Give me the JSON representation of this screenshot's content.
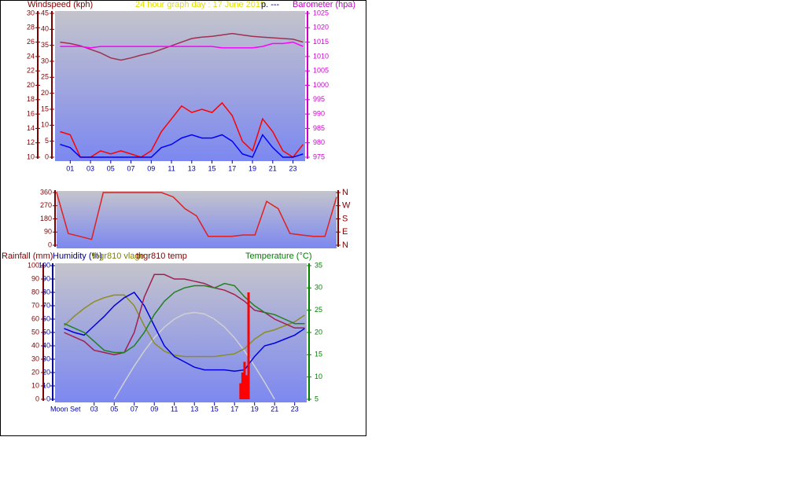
{
  "chart_data": [
    {
      "type": "line",
      "title": "24 hour graph day : 17 June 2019",
      "annotation": "p. ---",
      "ylabel": "Windspeed (kph)",
      "y2label": "Barometer (hpa)",
      "x": [
        0,
        1,
        2,
        3,
        4,
        5,
        6,
        7,
        8,
        9,
        10,
        11,
        12,
        13,
        14,
        15,
        16,
        17,
        18,
        19,
        20,
        21,
        22,
        23,
        24
      ],
      "xlim": [
        -0.5,
        24.2
      ],
      "xticks": [
        {
          "value": 1,
          "label": "01"
        },
        {
          "value": 3,
          "label": "03"
        },
        {
          "value": 5,
          "label": "05"
        },
        {
          "value": 7,
          "label": "07"
        },
        {
          "value": 9,
          "label": "09"
        },
        {
          "value": 11,
          "label": "11"
        },
        {
          "value": 13,
          "label": "13"
        },
        {
          "value": 15,
          "label": "15"
        },
        {
          "value": 17,
          "label": "17"
        },
        {
          "value": 19,
          "label": "19"
        },
        {
          "value": 21,
          "label": "21"
        },
        {
          "value": 23,
          "label": "23"
        }
      ],
      "ylim": [
        0,
        45
      ],
      "yticks": [
        0,
        5,
        10,
        15,
        20,
        25,
        30,
        35,
        40,
        45
      ],
      "y3lim": [
        10,
        30
      ],
      "y3ticks": [
        10,
        12,
        14,
        16,
        18,
        20,
        22,
        24,
        26,
        28,
        30
      ],
      "y2lim": [
        975,
        1025
      ],
      "y2ticks": [
        975,
        980,
        985,
        990,
        995,
        1000,
        1005,
        1010,
        1015,
        1020,
        1025
      ],
      "series": [
        {
          "color": "#ff0000",
          "values": [
            8,
            7,
            0,
            0,
            2,
            1,
            2,
            1,
            0,
            2,
            8,
            12,
            16,
            14,
            15,
            14,
            17,
            13,
            5,
            2,
            12,
            8,
            2,
            0,
            4
          ]
        },
        {
          "color": "#0000ff",
          "values": [
            4,
            3,
            0,
            0,
            0,
            0,
            0,
            0,
            0,
            0,
            3,
            4,
            6,
            7,
            6,
            6,
            7,
            5,
            1,
            0,
            7,
            3,
            0,
            0,
            1
          ]
        },
        {
          "color": "#a03050",
          "axis": "y3",
          "values": [
            26,
            25.8,
            25.5,
            25,
            24.5,
            23.8,
            23.5,
            23.8,
            24.2,
            24.5,
            25,
            25.5,
            26,
            26.5,
            26.7,
            26.8,
            27,
            27.2,
            27,
            26.8,
            26.7,
            26.6,
            26.5,
            26.4,
            26
          ]
        },
        {
          "color": "#ff00ff",
          "axis": "y2",
          "values": [
            1013.5,
            1013.5,
            1013.5,
            1013,
            1013.5,
            1013.5,
            1013.5,
            1013.5,
            1013.5,
            1013.5,
            1013.5,
            1013.5,
            1013.5,
            1013.5,
            1013.5,
            1013.5,
            1013,
            1013,
            1013,
            1013,
            1013.5,
            1014.5,
            1014.5,
            1015,
            1013.5
          ]
        }
      ]
    },
    {
      "type": "line",
      "x": [
        0,
        1,
        2,
        3,
        4,
        5,
        6,
        7,
        8,
        9,
        10,
        11,
        12,
        13,
        14,
        15,
        16,
        17,
        18,
        19,
        20,
        21,
        22,
        23,
        24
      ],
      "xlim": [
        0,
        24
      ],
      "ylim": [
        0,
        360
      ],
      "yticks": [
        0,
        90,
        180,
        270,
        360
      ],
      "y2ticks": [
        {
          "value": 0,
          "label": "N"
        },
        {
          "value": 90,
          "label": "E"
        },
        {
          "value": 180,
          "label": "S"
        },
        {
          "value": 270,
          "label": "W"
        },
        {
          "value": 360,
          "label": "N"
        }
      ],
      "series": [
        {
          "color": "#e02020",
          "values": [
            360,
            80,
            60,
            40,
            360,
            360,
            360,
            360,
            360,
            360,
            330,
            250,
            200,
            60,
            60,
            60,
            70,
            70,
            300,
            250,
            80,
            70,
            60,
            60,
            330
          ]
        }
      ]
    },
    {
      "type": "line",
      "ylabel": "Humidity (%)",
      "y3label": "Rainfall (mm)",
      "labels": [
        "thgr810 vlage",
        "thgr810 temp"
      ],
      "y2label": "Temperature (°C)",
      "annotation": "Moon Set",
      "x": [
        0,
        1,
        2,
        3,
        4,
        5,
        6,
        7,
        8,
        9,
        10,
        11,
        12,
        13,
        14,
        15,
        16,
        17,
        18,
        19,
        20,
        21,
        22,
        23,
        24
      ],
      "xlim": [
        -0.9,
        24.2
      ],
      "xticks": [
        {
          "value": 3,
          "label": "03"
        },
        {
          "value": 5,
          "label": "05"
        },
        {
          "value": 7,
          "label": "07"
        },
        {
          "value": 9,
          "label": "09"
        },
        {
          "value": 11,
          "label": "11"
        },
        {
          "value": 13,
          "label": "13"
        },
        {
          "value": 15,
          "label": "15"
        },
        {
          "value": 17,
          "label": "17"
        },
        {
          "value": 19,
          "label": "19"
        },
        {
          "value": 21,
          "label": "21"
        },
        {
          "value": 23,
          "label": "23"
        }
      ],
      "ylim": [
        0,
        100
      ],
      "yticks": [
        0,
        10,
        20,
        30,
        40,
        50,
        60,
        70,
        80,
        90,
        100
      ],
      "y3lim": [
        0,
        100
      ],
      "y3ticks": [
        0,
        10,
        20,
        30,
        40,
        50,
        60,
        70,
        80,
        90,
        100
      ],
      "y2lim": [
        5,
        35
      ],
      "y2ticks": [
        5,
        10,
        15,
        20,
        25,
        30,
        35
      ],
      "series": [
        {
          "color": "#d0d0d0",
          "values": [
            null,
            null,
            null,
            null,
            null,
            0,
            12.7,
            24.9,
            36.1,
            46,
            54,
            60,
            63.8,
            65,
            63.8,
            60,
            54,
            46,
            36.1,
            24.9,
            12.7,
            0,
            null,
            null,
            null
          ]
        },
        {
          "color": "#8c8c20",
          "values": [
            55,
            62,
            68,
            73,
            76,
            78,
            78,
            70,
            55,
            42,
            36,
            33,
            32,
            32,
            32,
            32,
            33,
            34,
            38,
            45,
            50,
            52,
            55,
            58,
            63
          ]
        },
        {
          "color": "#0000e0",
          "values": [
            53,
            50,
            48,
            55,
            62,
            70,
            76,
            80,
            70,
            55,
            40,
            32,
            28,
            24,
            22,
            22,
            22,
            21,
            22,
            32,
            40,
            42,
            45,
            48,
            53
          ]
        },
        {
          "color": "#a02050",
          "axis": "y2",
          "values": [
            20,
            19,
            18,
            16,
            15.5,
            15,
            15.5,
            20,
            28,
            33,
            33,
            32,
            32,
            31.5,
            31,
            30,
            29.5,
            28.5,
            27,
            25,
            24.5,
            23,
            22,
            21,
            21
          ]
        },
        {
          "color": "#208020",
          "axis": "y2",
          "values": [
            22,
            21,
            20,
            18,
            16,
            15.5,
            15.5,
            17,
            20,
            24,
            27,
            29,
            30,
            30.5,
            30.5,
            30,
            31,
            30.5,
            28,
            26,
            24.5,
            24,
            23,
            22,
            22
          ]
        },
        {
          "color": "#ff0000",
          "axis": "y3",
          "style": "bar",
          "x": [
            17.6,
            17.8,
            18.0,
            18.2,
            18.4
          ],
          "values": [
            12,
            20,
            28,
            18,
            80
          ]
        }
      ]
    }
  ]
}
